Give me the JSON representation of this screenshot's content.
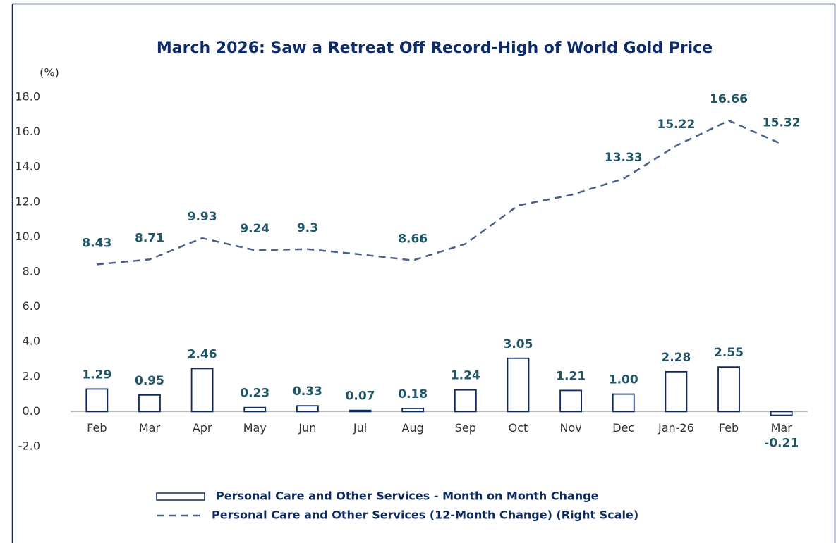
{
  "chart_data": {
    "type": "bar",
    "title": "March  2026:  Saw a Retreat Off Record-High of World Gold Price",
    "y_label": "(%)",
    "categories": [
      "Feb",
      "Mar",
      "Apr",
      "May",
      "Jun",
      "Jul",
      "Aug",
      "Sep",
      "Oct",
      "Nov",
      "Dec",
      "Jan-26",
      "Feb",
      "Mar"
    ],
    "series": [
      {
        "name": "Personal Care and Other Services - Month on Month Change",
        "type": "bar",
        "color": "#0c2a5e",
        "values": [
          1.29,
          0.95,
          2.46,
          0.23,
          0.33,
          0.07,
          0.18,
          1.24,
          3.05,
          1.21,
          1.0,
          2.28,
          2.55,
          -0.21
        ],
        "value_labels": [
          "1.29",
          "0.95",
          "2.46",
          "0.23",
          "0.33",
          "0.07",
          "0.18",
          "1.24",
          "3.05",
          "1.21",
          "1.00",
          "2.28",
          "2.55",
          "-0.21"
        ]
      },
      {
        "name": "Personal Care and Other Services (12-Month Change) (Right Scale)",
        "type": "line",
        "color": "#4a5f8c",
        "values": [
          8.43,
          8.71,
          9.93,
          9.24,
          9.3,
          9.0,
          8.66,
          9.6,
          11.8,
          12.4,
          13.33,
          15.22,
          16.66,
          15.32
        ],
        "value_labels": [
          "8.43",
          "8.71",
          "9.93",
          "9.24",
          "9.3",
          null,
          "8.66",
          null,
          null,
          null,
          "13.33",
          "15.22",
          "16.66",
          "15.32"
        ]
      }
    ],
    "ylim": [
      -2,
      18
    ],
    "yticks": [
      {
        "value": -2,
        "label": "-2.0"
      },
      {
        "value": 0,
        "label": "0.0"
      },
      {
        "value": 2,
        "label": "2.0"
      },
      {
        "value": 4,
        "label": "4.0"
      },
      {
        "value": 6,
        "label": "6.0"
      },
      {
        "value": 8,
        "label": "8.0"
      },
      {
        "value": 10,
        "label": "10.0"
      },
      {
        "value": 12,
        "label": "12.0"
      },
      {
        "value": 14,
        "label": "14.0"
      },
      {
        "value": 16,
        "label": "16.0"
      },
      {
        "value": 18,
        "label": "18.0"
      }
    ],
    "grid": false
  }
}
